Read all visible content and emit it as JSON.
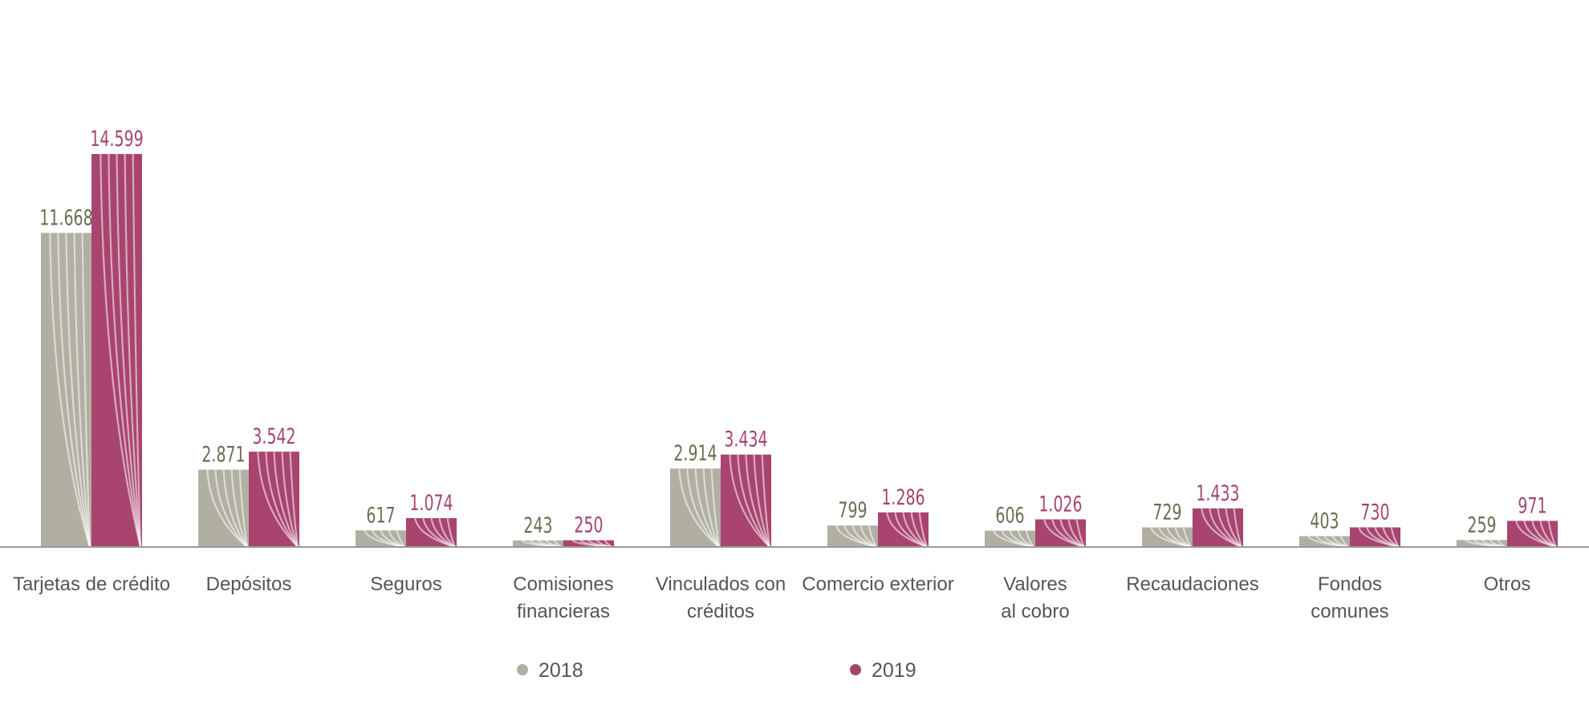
{
  "chart_data": {
    "type": "bar",
    "categories": [
      [
        "Tarjetas de crédito"
      ],
      [
        "Depósitos"
      ],
      [
        "Seguros"
      ],
      [
        "Comisiones",
        "financieras"
      ],
      [
        "Vinculados con",
        "créditos"
      ],
      [
        "Comercio exterior"
      ],
      [
        "Valores",
        "al cobro"
      ],
      [
        "Recaudaciones"
      ],
      [
        "Fondos",
        "comunes"
      ],
      [
        "Otros"
      ]
    ],
    "series": [
      {
        "name": "2018",
        "color": "#b0afa2",
        "label_color": "#6b6e52",
        "values": [
          11668,
          2871,
          617,
          243,
          2914,
          799,
          606,
          729,
          403,
          259
        ],
        "labels": [
          "11.668",
          "2.871",
          "617",
          "243",
          "2.914",
          "799",
          "606",
          "729",
          "403",
          "259"
        ]
      },
      {
        "name": "2019",
        "color": "#a8446e",
        "label_color": "#a8446e",
        "values": [
          14599,
          3542,
          1074,
          250,
          3434,
          1286,
          1026,
          1433,
          730,
          971
        ],
        "labels": [
          "14.599",
          "3.542",
          "1.074",
          "250",
          "3.434",
          "1.286",
          "1.026",
          "1.433",
          "730",
          "971"
        ]
      }
    ],
    "ylim": [
      0,
      17000
    ],
    "grid": false,
    "legend_position": "bottom-center",
    "title": "",
    "xlabel": "",
    "ylabel": ""
  }
}
